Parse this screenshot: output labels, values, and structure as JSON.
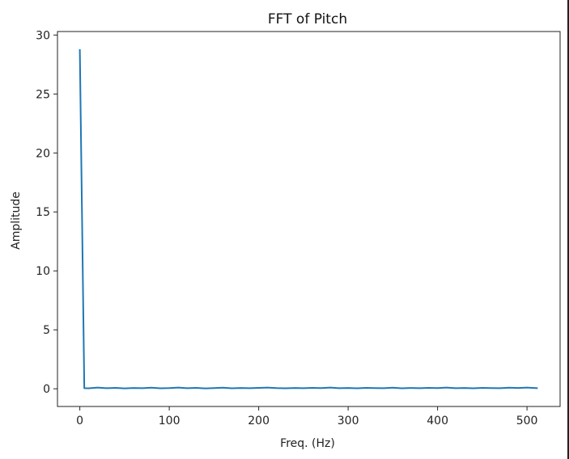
{
  "chart_data": {
    "type": "line",
    "title": "FFT of Pitch",
    "xlabel": "Freq. (Hz)",
    "ylabel": "Amplitude",
    "xlim": [
      -25,
      537
    ],
    "ylim": [
      -1.5,
      30.3
    ],
    "xticks": [
      0,
      100,
      200,
      300,
      400,
      500
    ],
    "yticks": [
      0,
      5,
      10,
      15,
      20,
      25,
      30
    ],
    "grid": false,
    "series": [
      {
        "color": "#1f77b4",
        "x": [
          0,
          5,
          10,
          20,
          30,
          40,
          50,
          60,
          70,
          80,
          90,
          100,
          110,
          120,
          130,
          140,
          150,
          160,
          170,
          180,
          190,
          200,
          210,
          220,
          230,
          240,
          250,
          260,
          270,
          280,
          290,
          300,
          310,
          320,
          330,
          340,
          350,
          360,
          370,
          380,
          390,
          400,
          410,
          420,
          430,
          440,
          450,
          460,
          470,
          480,
          490,
          500,
          510,
          512
        ],
        "y": [
          28.8,
          0.05,
          0.04,
          0.1,
          0.05,
          0.08,
          0.03,
          0.07,
          0.05,
          0.09,
          0.04,
          0.06,
          0.1,
          0.05,
          0.08,
          0.03,
          0.06,
          0.09,
          0.04,
          0.07,
          0.05,
          0.08,
          0.1,
          0.06,
          0.04,
          0.07,
          0.05,
          0.08,
          0.06,
          0.1,
          0.05,
          0.07,
          0.04,
          0.08,
          0.06,
          0.05,
          0.09,
          0.04,
          0.07,
          0.05,
          0.08,
          0.06,
          0.1,
          0.05,
          0.07,
          0.04,
          0.08,
          0.06,
          0.05,
          0.09,
          0.07,
          0.1,
          0.06,
          0.05
        ]
      }
    ]
  }
}
